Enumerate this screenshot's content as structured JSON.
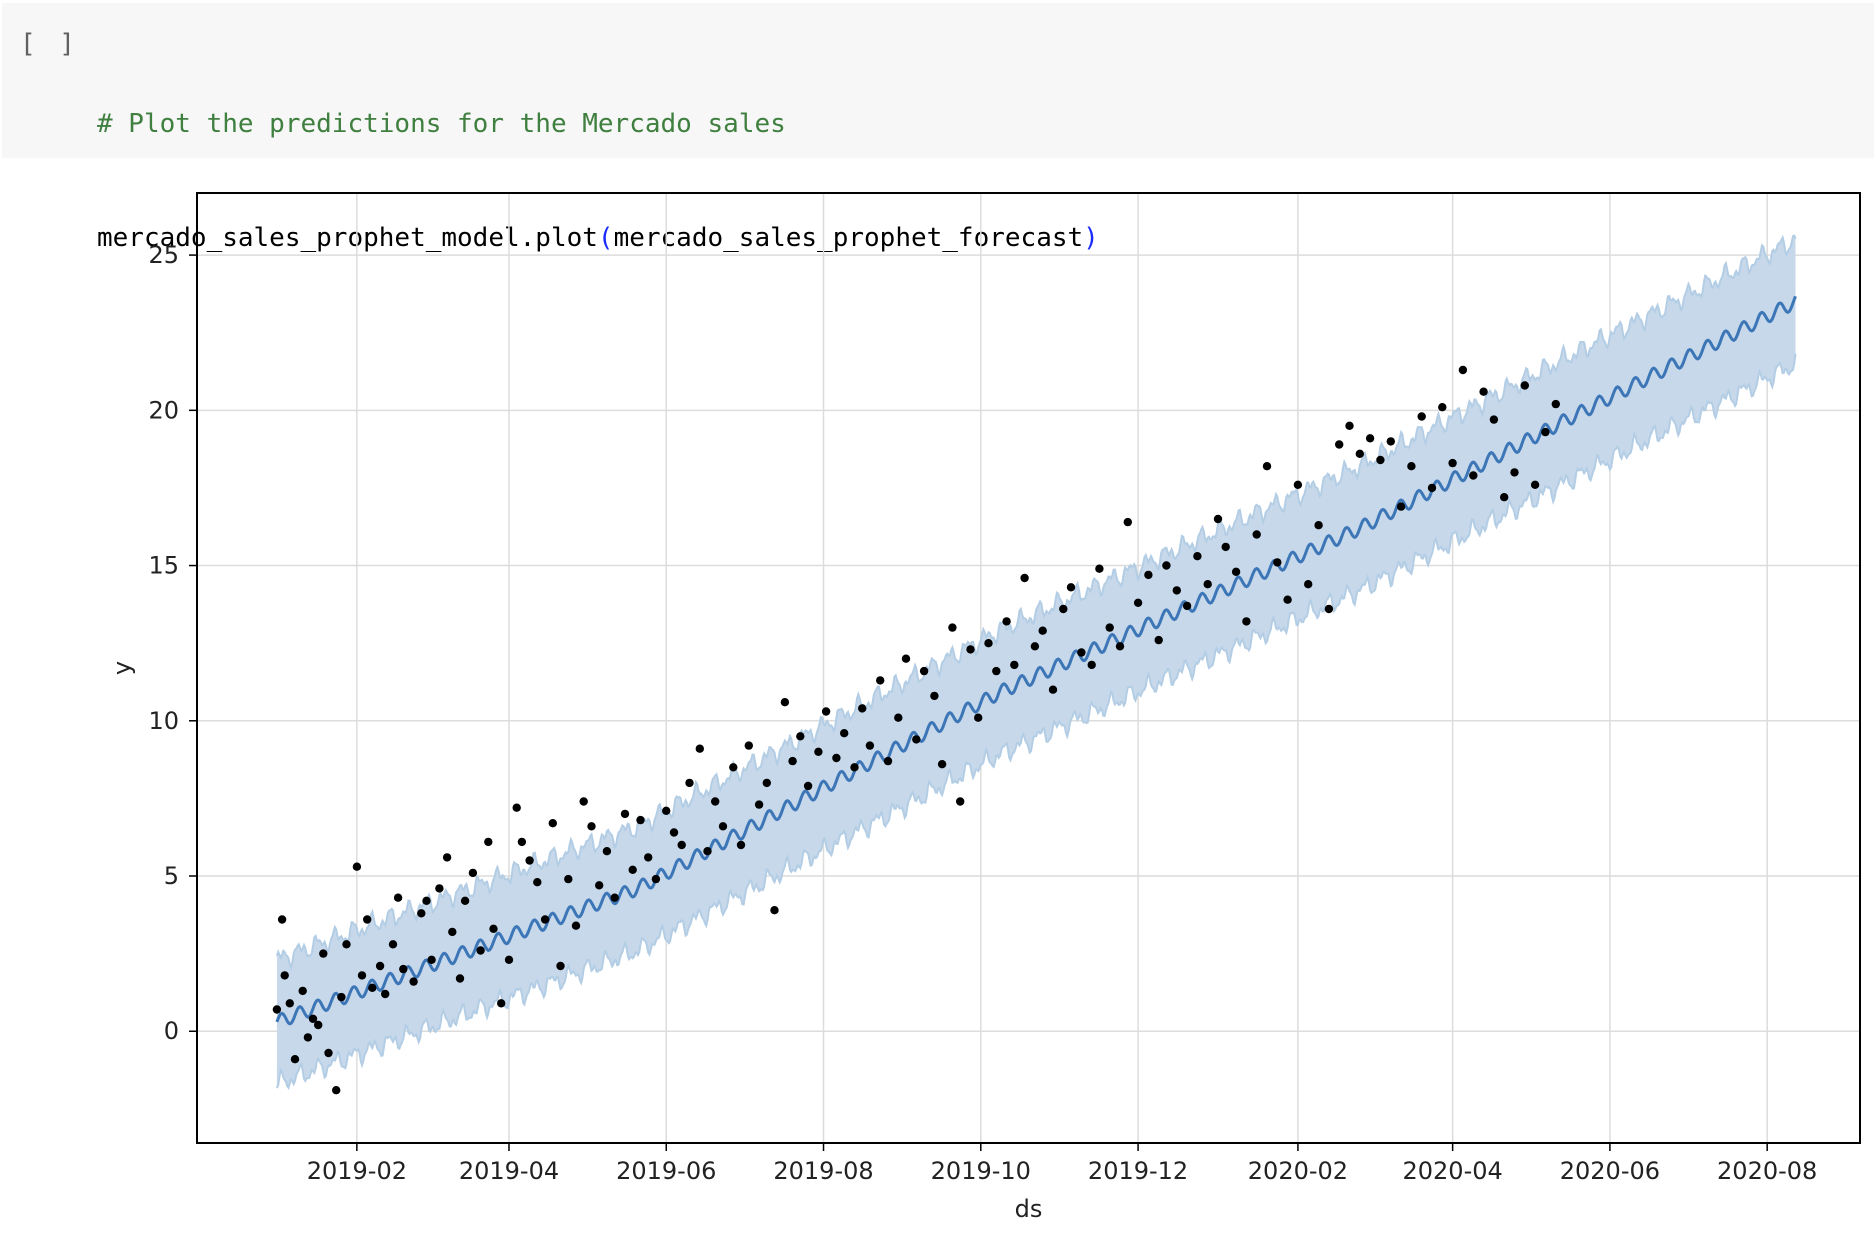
{
  "cell": {
    "run_indicator": "[ ]",
    "comment": "# Plot the predictions for the Mercado sales",
    "code_prefix": "mercado_sales_prophet_model.plot",
    "code_open_paren": "(",
    "code_arg": "mercado_sales_prophet_forecast",
    "code_close_paren": ")"
  },
  "colors": {
    "forecast_line": "#3d76b7",
    "uncertainty_band": "#c6d8ea",
    "observed_points": "#000000",
    "cell_background": "#f7f7f7",
    "comment_text": "#3f7f3f",
    "paren_text": "#1a2bff"
  },
  "chart_data": {
    "type": "scatter",
    "xlabel": "ds",
    "ylabel": "y",
    "xlim": [
      "2018-12-01",
      "2020-09-06"
    ],
    "ylim": [
      -3.6,
      27
    ],
    "grid": true,
    "x_tick_labels": [
      "2019-02",
      "2019-04",
      "2019-06",
      "2019-08",
      "2019-10",
      "2019-12",
      "2020-02",
      "2020-04",
      "2020-06",
      "2020-08"
    ],
    "x_tick_dates": [
      "2019-02-01",
      "2019-04-01",
      "2019-06-01",
      "2019-08-01",
      "2019-10-01",
      "2019-12-01",
      "2020-02-01",
      "2020-04-01",
      "2020-06-01",
      "2020-08-01"
    ],
    "y_ticks": [
      0,
      5,
      10,
      15,
      20,
      25
    ],
    "series": [
      {
        "kind": "line",
        "x": [
          "2019-01-01",
          "2019-05-21",
          "2019-10-08",
          "2020-02-25",
          "2020-05-13",
          "2020-08-12"
        ],
        "y": [
          0.3,
          4.6,
          10.9,
          16.2,
          19.6,
          23.5
        ]
      },
      {
        "kind": "band",
        "x": [
          "2019-01-01",
          "2019-05-21",
          "2019-10-08",
          "2020-02-25",
          "2020-05-13",
          "2020-08-12"
        ],
        "lower": [
          -1.7,
          2.6,
          8.9,
          14.2,
          17.6,
          21.5
        ],
        "upper": [
          2.3,
          6.6,
          12.9,
          18.2,
          21.6,
          25.5
        ]
      },
      {
        "kind": "scatter",
        "x": [
          "2019-01-01",
          "2019-01-03",
          "2019-01-04",
          "2019-01-06",
          "2019-01-08",
          "2019-01-11",
          "2019-01-13",
          "2019-01-15",
          "2019-01-17",
          "2019-01-19",
          "2019-01-21",
          "2019-01-24",
          "2019-01-26",
          "2019-01-28",
          "2019-02-01",
          "2019-02-03",
          "2019-02-05",
          "2019-02-07",
          "2019-02-10",
          "2019-02-12",
          "2019-02-15",
          "2019-02-17",
          "2019-02-19",
          "2019-02-23",
          "2019-02-26",
          "2019-02-28",
          "2019-03-02",
          "2019-03-05",
          "2019-03-08",
          "2019-03-10",
          "2019-03-13",
          "2019-03-15",
          "2019-03-18",
          "2019-03-21",
          "2019-03-24",
          "2019-03-26",
          "2019-03-29",
          "2019-04-01",
          "2019-04-04",
          "2019-04-06",
          "2019-04-09",
          "2019-04-12",
          "2019-04-15",
          "2019-04-18",
          "2019-04-21",
          "2019-04-24",
          "2019-04-27",
          "2019-04-30",
          "2019-05-03",
          "2019-05-06",
          "2019-05-09",
          "2019-05-12",
          "2019-05-16",
          "2019-05-19",
          "2019-05-22",
          "2019-05-25",
          "2019-05-28",
          "2019-06-01",
          "2019-06-04",
          "2019-06-07",
          "2019-06-10",
          "2019-06-14",
          "2019-06-17",
          "2019-06-20",
          "2019-06-23",
          "2019-06-27",
          "2019-06-30",
          "2019-07-03",
          "2019-07-07",
          "2019-07-10",
          "2019-07-13",
          "2019-07-17",
          "2019-07-20",
          "2019-07-23",
          "2019-07-26",
          "2019-07-30",
          "2019-08-02",
          "2019-08-06",
          "2019-08-09",
          "2019-08-13",
          "2019-08-16",
          "2019-08-19",
          "2019-08-23",
          "2019-08-26",
          "2019-08-30",
          "2019-09-02",
          "2019-09-06",
          "2019-09-09",
          "2019-09-13",
          "2019-09-16",
          "2019-09-20",
          "2019-09-23",
          "2019-09-27",
          "2019-09-30",
          "2019-10-04",
          "2019-10-07",
          "2019-10-11",
          "2019-10-14",
          "2019-10-18",
          "2019-10-22",
          "2019-10-25",
          "2019-10-29",
          "2019-11-02",
          "2019-11-05",
          "2019-11-09",
          "2019-11-13",
          "2019-11-16",
          "2019-11-20",
          "2019-11-24",
          "2019-11-27",
          "2019-12-01",
          "2019-12-05",
          "2019-12-09",
          "2019-12-12",
          "2019-12-16",
          "2019-12-20",
          "2019-12-24",
          "2019-12-28",
          "2020-01-01",
          "2020-01-04",
          "2020-01-08",
          "2020-01-12",
          "2020-01-16",
          "2020-01-20",
          "2020-01-24",
          "2020-01-28",
          "2020-02-01",
          "2020-02-05",
          "2020-02-09",
          "2020-02-13",
          "2020-02-17",
          "2020-02-21",
          "2020-02-25",
          "2020-02-29",
          "2020-03-04",
          "2020-03-08",
          "2020-03-12",
          "2020-03-16",
          "2020-03-20",
          "2020-03-24",
          "2020-03-28",
          "2020-04-01",
          "2020-04-05",
          "2020-04-09",
          "2020-04-13",
          "2020-04-17",
          "2020-04-21",
          "2020-04-25",
          "2020-04-29",
          "2020-05-03",
          "2020-05-07",
          "2020-05-11"
        ],
        "y": [
          0.7,
          3.6,
          1.8,
          0.9,
          -0.9,
          1.3,
          -0.2,
          0.4,
          0.2,
          2.5,
          -0.7,
          -1.9,
          1.1,
          2.8,
          5.3,
          1.8,
          3.6,
          1.4,
          2.1,
          1.2,
          2.8,
          4.3,
          2.0,
          1.6,
          3.8,
          4.2,
          2.3,
          4.6,
          5.6,
          3.2,
          1.7,
          4.2,
          5.1,
          2.6,
          6.1,
          3.3,
          0.9,
          2.3,
          7.2,
          6.1,
          5.5,
          4.8,
          3.6,
          6.7,
          2.1,
          4.9,
          3.4,
          7.4,
          6.6,
          4.7,
          5.8,
          4.3,
          7.0,
          5.2,
          6.8,
          5.6,
          4.9,
          7.1,
          6.4,
          6.0,
          8.0,
          9.1,
          5.8,
          7.4,
          6.6,
          8.5,
          6.0,
          9.2,
          7.3,
          8.0,
          3.9,
          10.6,
          8.7,
          9.5,
          7.9,
          9.0,
          10.3,
          8.8,
          9.6,
          8.5,
          10.4,
          9.2,
          11.3,
          8.7,
          10.1,
          12.0,
          9.4,
          11.6,
          10.8,
          8.6,
          13.0,
          7.4,
          12.3,
          10.1,
          12.5,
          11.6,
          13.2,
          11.8,
          14.6,
          12.4,
          12.9,
          11.0,
          13.6,
          14.3,
          12.2,
          11.8,
          14.9,
          13.0,
          12.4,
          16.4,
          13.8,
          14.7,
          12.6,
          15.0,
          14.2,
          13.7,
          15.3,
          14.4,
          16.5,
          15.6,
          14.8,
          13.2,
          16.0,
          18.2,
          15.1,
          13.9,
          17.6,
          14.4,
          16.3,
          13.6,
          18.9,
          19.5,
          18.6,
          19.1,
          18.4,
          19.0,
          16.9,
          18.2,
          19.8,
          17.5,
          20.1,
          18.3,
          21.3,
          17.9,
          20.6,
          19.7,
          17.2,
          18.0,
          20.8,
          17.6,
          19.3,
          20.2
        ]
      }
    ]
  }
}
